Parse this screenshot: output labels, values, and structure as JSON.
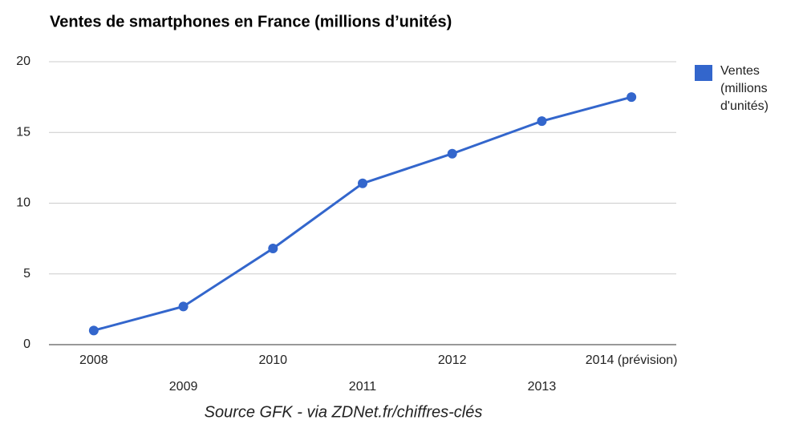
{
  "chart_data": {
    "type": "line",
    "title": "Ventes de smartphones en France (millions d’unités)",
    "caption": "Source GFK - via ZDNet.fr/chiffres-clés",
    "categories": [
      "2008",
      "2009",
      "2010",
      "2011",
      "2012",
      "2013",
      "2014 (prévision)"
    ],
    "series": [
      {
        "name": "Ventes (millions d'unités)",
        "color": "#3366cc",
        "values": [
          1.0,
          2.7,
          6.8,
          11.4,
          13.5,
          15.8,
          17.5
        ]
      }
    ],
    "ylim": [
      0,
      20
    ],
    "yticks": [
      0,
      5,
      10,
      15,
      20
    ],
    "grid": true,
    "legend": "right"
  }
}
